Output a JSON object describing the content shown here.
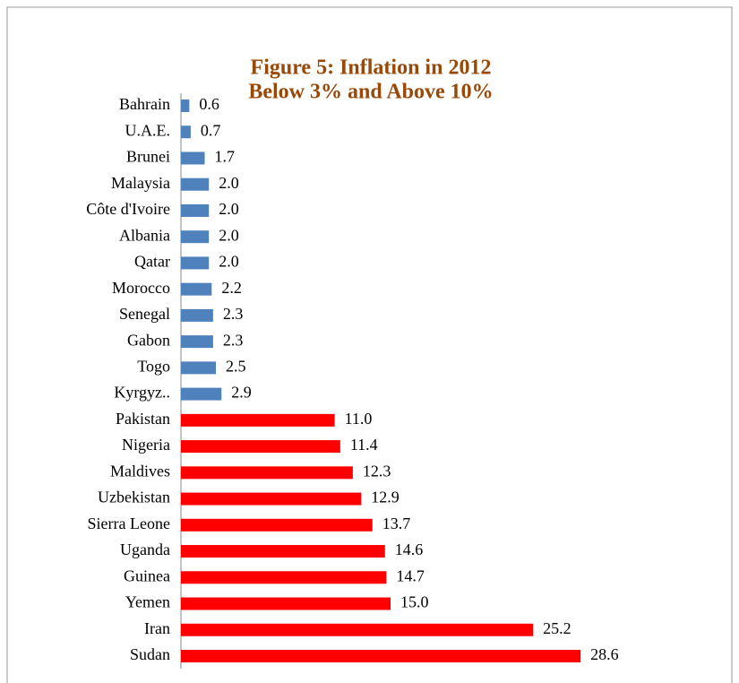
{
  "chart_data": {
    "type": "barh",
    "title": "Figure 5: Inflation in 2012",
    "subtitle": "Below 3% and Above 10%",
    "categories": [
      "Bahrain",
      "U.A.E.",
      "Brunei",
      "Malaysia",
      "Côte d'Ivoire",
      "Albania",
      "Qatar",
      "Morocco",
      "Senegal",
      "Gabon",
      "Togo",
      "Kyrgyz..",
      "Pakistan",
      "Nigeria",
      "Maldives",
      "Uzbekistan",
      "Sierra Leone",
      "Uganda",
      "Guinea",
      "Yemen",
      "Iran",
      "Sudan"
    ],
    "values": [
      0.6,
      0.7,
      1.7,
      2.0,
      2.0,
      2.0,
      2.0,
      2.2,
      2.3,
      2.3,
      2.5,
      2.9,
      11.0,
      11.4,
      12.3,
      12.9,
      13.7,
      14.6,
      14.7,
      15.0,
      25.2,
      28.6
    ],
    "value_labels": [
      "0.6",
      "0.7",
      "1.7",
      "2.0",
      "2.0",
      "2.0",
      "2.0",
      "2.2",
      "2.3",
      "2.3",
      "2.5",
      "2.9",
      "11.0",
      "11.4",
      "12.3",
      "12.9",
      "13.7",
      "14.6",
      "14.7",
      "15.0",
      "25.2",
      "28.6"
    ],
    "colors": [
      "#4f81bd",
      "#4f81bd",
      "#4f81bd",
      "#4f81bd",
      "#4f81bd",
      "#4f81bd",
      "#4f81bd",
      "#4f81bd",
      "#4f81bd",
      "#4f81bd",
      "#4f81bd",
      "#4f81bd",
      "#ff0000",
      "#ff0000",
      "#ff0000",
      "#ff0000",
      "#ff0000",
      "#ff0000",
      "#ff0000",
      "#ff0000",
      "#ff0000",
      "#ff0000"
    ],
    "xlim": [
      0,
      30
    ]
  }
}
